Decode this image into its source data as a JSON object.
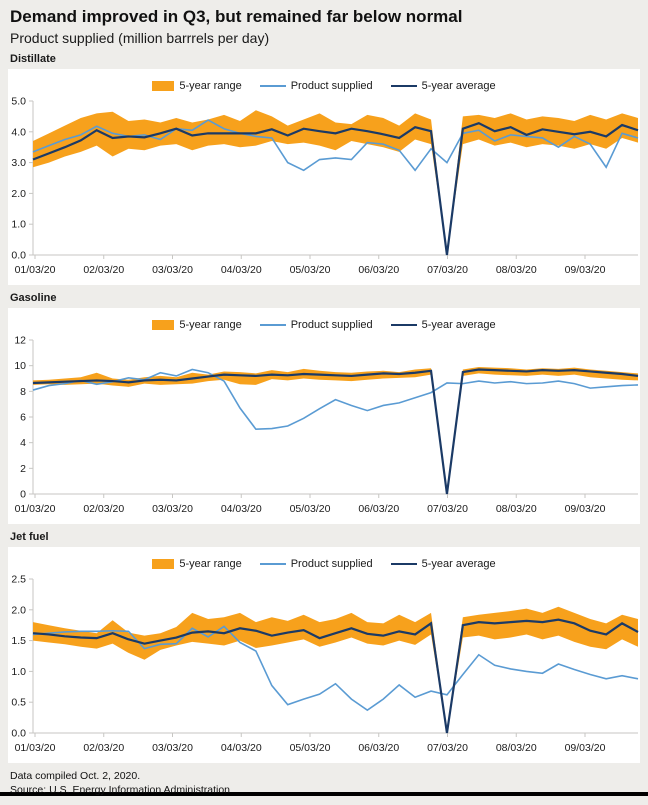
{
  "header": {
    "title": "Demand improved in Q3, but remained far below normal",
    "subtitle": "Product supplied (million barrrels per day)"
  },
  "footer": {
    "line1": "Data compiled Oct. 2, 2020.",
    "line2": "Source: U.S. Energy Information Administration"
  },
  "colors": {
    "range_band": "#F7A11C",
    "product_supplied": "#5A9BD3",
    "five_year_average": "#1B3A66",
    "page_background": "#EEEDEA",
    "axis": "#C7C6C3"
  },
  "chart_data": [
    {
      "type": "line",
      "title": "Distillate",
      "ylim": [
        0,
        5
      ],
      "y_tick_labels": [
        "5.0",
        "4.0",
        "3.0",
        "2.0",
        "1.0",
        "0.0"
      ],
      "x_tick_labels": [
        "01/03/20",
        "02/03/20",
        "03/03/20",
        "04/03/20",
        "05/03/20",
        "06/03/20",
        "07/03/20",
        "08/03/20",
        "09/03/20"
      ],
      "legend_position": "top",
      "grid": false,
      "series": [
        {
          "name": "5-year range",
          "swatch": "band",
          "lower": [
            2.85,
            3.0,
            3.2,
            3.35,
            3.55,
            3.2,
            3.45,
            3.4,
            3.55,
            3.6,
            3.4,
            3.55,
            3.6,
            3.5,
            3.55,
            3.7,
            3.6,
            3.65,
            3.55,
            3.4,
            3.7,
            3.6,
            3.5,
            3.35,
            3.75,
            3.6,
            0.0,
            3.6,
            3.75,
            3.55,
            3.65,
            3.5,
            3.6,
            3.55,
            3.45,
            3.6,
            3.45,
            3.8,
            3.65
          ],
          "upper": [
            3.7,
            3.95,
            4.2,
            4.45,
            4.6,
            4.65,
            4.35,
            4.4,
            4.3,
            4.45,
            4.3,
            4.4,
            4.55,
            4.35,
            4.7,
            4.5,
            4.2,
            4.4,
            4.6,
            4.3,
            4.25,
            4.55,
            4.45,
            4.2,
            4.6,
            4.4,
            0.05,
            4.5,
            4.55,
            4.45,
            4.6,
            4.4,
            4.5,
            4.45,
            4.35,
            4.55,
            4.4,
            4.6,
            4.45
          ]
        },
        {
          "name": "Product supplied",
          "swatch": "line-light",
          "values": [
            3.35,
            3.55,
            3.75,
            3.9,
            4.18,
            3.95,
            3.85,
            3.9,
            3.75,
            4.1,
            4.05,
            4.38,
            4.1,
            3.95,
            3.85,
            3.8,
            3.0,
            2.75,
            3.1,
            3.15,
            3.1,
            3.65,
            3.6,
            3.4,
            2.75,
            3.45,
            3.0,
            3.95,
            4.05,
            3.7,
            3.9,
            3.85,
            3.8,
            3.5,
            3.85,
            3.6,
            2.85,
            3.95,
            3.8
          ]
        },
        {
          "name": "5-year average",
          "swatch": "line-dark",
          "values": [
            3.1,
            3.3,
            3.5,
            3.72,
            4.05,
            3.8,
            3.85,
            3.82,
            3.95,
            4.1,
            3.88,
            3.95,
            3.95,
            3.95,
            3.95,
            4.08,
            3.88,
            4.1,
            4.02,
            3.95,
            4.1,
            4.02,
            3.92,
            3.8,
            4.15,
            4.02,
            0.0,
            4.1,
            4.28,
            4.02,
            4.15,
            3.9,
            4.08,
            4.0,
            3.92,
            4.0,
            3.85,
            4.22,
            4.05
          ]
        }
      ]
    },
    {
      "type": "line",
      "title": "Gasoline",
      "ylim": [
        0,
        12
      ],
      "y_tick_labels": [
        "12",
        "10",
        "8",
        "6",
        "4",
        "2",
        "0"
      ],
      "x_tick_labels": [
        "01/03/20",
        "02/03/20",
        "03/03/20",
        "04/03/20",
        "05/03/20",
        "06/03/20",
        "07/03/20",
        "08/03/20",
        "09/03/20"
      ],
      "legend_position": "top",
      "grid": false,
      "series": [
        {
          "name": "5-year range",
          "swatch": "band",
          "lower": [
            8.5,
            8.55,
            8.5,
            8.55,
            8.6,
            8.45,
            8.35,
            8.6,
            8.5,
            8.55,
            8.6,
            8.8,
            8.9,
            8.55,
            8.5,
            8.95,
            8.85,
            9.0,
            8.9,
            8.85,
            8.8,
            8.9,
            9.0,
            9.05,
            9.1,
            9.3,
            0.0,
            9.2,
            9.4,
            9.3,
            9.25,
            9.2,
            9.3,
            9.2,
            9.3,
            9.1,
            9.0,
            8.9,
            8.85
          ],
          "upper": [
            8.85,
            8.9,
            9.0,
            9.1,
            9.45,
            9.0,
            8.9,
            9.1,
            9.2,
            9.1,
            9.45,
            9.3,
            9.55,
            9.5,
            9.4,
            9.65,
            9.5,
            9.75,
            9.6,
            9.5,
            9.45,
            9.55,
            9.6,
            9.5,
            9.7,
            9.8,
            0.05,
            9.7,
            9.9,
            9.85,
            9.8,
            9.7,
            9.8,
            9.75,
            9.85,
            9.7,
            9.6,
            9.5,
            9.4
          ]
        },
        {
          "name": "Product supplied",
          "swatch": "line-light",
          "values": [
            8.1,
            8.45,
            8.6,
            8.85,
            8.55,
            8.75,
            9.05,
            8.9,
            9.45,
            9.2,
            9.7,
            9.45,
            8.8,
            6.7,
            5.05,
            5.1,
            5.3,
            5.9,
            6.65,
            7.35,
            6.9,
            6.5,
            6.9,
            7.1,
            7.5,
            7.9,
            8.65,
            8.6,
            8.8,
            8.65,
            8.75,
            8.6,
            8.65,
            8.8,
            8.6,
            8.25,
            8.35,
            8.45,
            8.5
          ]
        },
        {
          "name": "5-year average",
          "swatch": "line-dark",
          "values": [
            8.65,
            8.7,
            8.75,
            8.8,
            8.85,
            8.8,
            8.7,
            8.85,
            8.9,
            8.85,
            9.0,
            9.15,
            9.3,
            9.25,
            9.2,
            9.3,
            9.25,
            9.35,
            9.3,
            9.25,
            9.2,
            9.3,
            9.4,
            9.35,
            9.45,
            9.6,
            0.0,
            9.5,
            9.7,
            9.65,
            9.6,
            9.55,
            9.65,
            9.6,
            9.65,
            9.55,
            9.45,
            9.35,
            9.2
          ]
        }
      ]
    },
    {
      "type": "line",
      "title": "Jet fuel",
      "ylim": [
        0,
        2.5
      ],
      "y_tick_labels": [
        "2.5",
        "2.0",
        "1.5",
        "1.0",
        "0.5",
        "0.0"
      ],
      "x_tick_labels": [
        "01/03/20",
        "02/03/20",
        "03/03/20",
        "04/03/20",
        "05/03/20",
        "06/03/20",
        "07/03/20",
        "08/03/20",
        "09/03/20"
      ],
      "legend_position": "top",
      "grid": false,
      "series": [
        {
          "name": "5-year range",
          "swatch": "band",
          "lower": [
            1.5,
            1.47,
            1.44,
            1.4,
            1.37,
            1.45,
            1.3,
            1.19,
            1.35,
            1.42,
            1.48,
            1.45,
            1.42,
            1.5,
            1.38,
            1.42,
            1.47,
            1.52,
            1.4,
            1.47,
            1.55,
            1.45,
            1.42,
            1.5,
            1.43,
            1.6,
            0.0,
            1.55,
            1.58,
            1.52,
            1.55,
            1.6,
            1.52,
            1.58,
            1.48,
            1.4,
            1.36,
            1.52,
            1.4
          ],
          "upper": [
            1.8,
            1.75,
            1.7,
            1.66,
            1.62,
            1.83,
            1.63,
            1.58,
            1.62,
            1.72,
            1.95,
            1.85,
            1.88,
            1.95,
            1.8,
            1.88,
            1.82,
            1.92,
            1.8,
            1.85,
            1.95,
            1.8,
            1.78,
            1.92,
            1.8,
            1.95,
            0.03,
            1.88,
            1.92,
            1.95,
            1.98,
            2.02,
            1.95,
            2.05,
            1.95,
            1.85,
            1.78,
            1.92,
            1.85
          ]
        },
        {
          "name": "Product supplied",
          "swatch": "line-light",
          "values": [
            1.6,
            1.62,
            1.64,
            1.65,
            1.65,
            1.66,
            1.65,
            1.37,
            1.44,
            1.45,
            1.7,
            1.56,
            1.73,
            1.47,
            1.33,
            0.77,
            0.46,
            0.55,
            0.63,
            0.8,
            0.55,
            0.37,
            0.55,
            0.78,
            0.58,
            0.68,
            0.62,
            0.95,
            1.27,
            1.1,
            1.04,
            1.0,
            0.97,
            1.12,
            1.03,
            0.95,
            0.88,
            0.93,
            0.88
          ]
        },
        {
          "name": "5-year average",
          "swatch": "line-dark",
          "values": [
            1.62,
            1.6,
            1.57,
            1.55,
            1.54,
            1.62,
            1.52,
            1.45,
            1.5,
            1.55,
            1.63,
            1.65,
            1.62,
            1.7,
            1.66,
            1.58,
            1.63,
            1.67,
            1.54,
            1.62,
            1.7,
            1.61,
            1.58,
            1.65,
            1.6,
            1.78,
            0.0,
            1.75,
            1.8,
            1.78,
            1.8,
            1.82,
            1.8,
            1.84,
            1.78,
            1.66,
            1.6,
            1.78,
            1.64
          ]
        }
      ]
    }
  ]
}
